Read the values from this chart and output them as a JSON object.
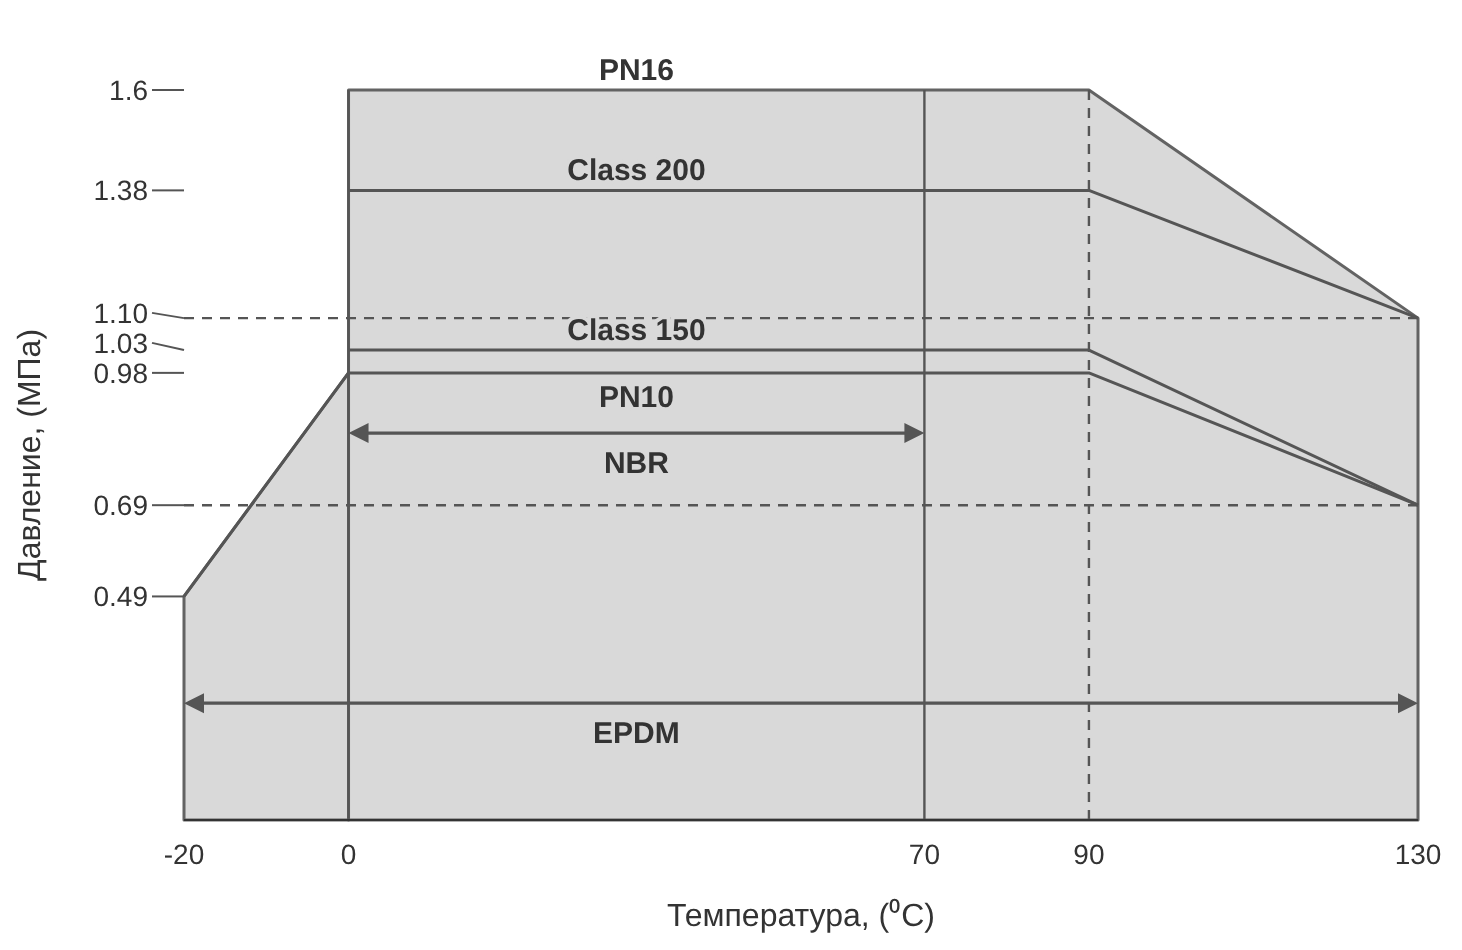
{
  "chart_data": {
    "type": "line",
    "xlabel": "Температура, (⁰C)",
    "ylabel": "Давление, (МПа)",
    "xlim": [
      -20,
      130
    ],
    "xticks": [
      -20,
      0,
      70,
      90,
      130
    ],
    "ylim": [
      0,
      1.6
    ],
    "yticks": [
      0.49,
      0.69,
      0.98,
      1.03,
      {
        "value": 1.1,
        "label": "1.10"
      },
      1.38,
      1.6
    ],
    "grid": false,
    "legend": false,
    "marker": "none",
    "line_style": "solid",
    "series": [
      {
        "type": "area",
        "color": "#d9d9d9",
        "x": [
          -20,
          0
        ],
        "values": [
          0.49,
          0.98
        ]
      },
      {
        "type": "area",
        "name": "PN16",
        "color": "#d9d9d9",
        "x": [
          0,
          90,
          130
        ],
        "values": [
          1.6,
          1.6,
          1.1
        ]
      },
      {
        "name": "Class 200",
        "color": "#555555",
        "x": [
          0,
          90,
          130
        ],
        "values": [
          1.38,
          1.38,
          1.1
        ]
      },
      {
        "name": "Class 150",
        "color": "#555555",
        "x": [
          0,
          90,
          130
        ],
        "values": [
          1.03,
          1.03,
          0.69
        ]
      },
      {
        "name": "PN10",
        "color": "#555555",
        "x": [
          -20,
          0,
          90,
          130
        ],
        "values": [
          0.49,
          0.98,
          0.98,
          0.69
        ]
      }
    ],
    "annotations": [
      "NBR",
      "EPDM"
    ],
    "ref_lines": [
      {
        "axis": "y",
        "value": 1.1,
        "line_style": "dashed",
        "color": "#555555"
      },
      {
        "axis": "y",
        "value": 0.69,
        "line_style": "dashed",
        "color": "#555555"
      },
      {
        "axis": "x",
        "value": 90,
        "line_style": "dashed",
        "color": "#555555"
      },
      {
        "axis": "x",
        "value": 70,
        "line_style": "solid",
        "color": "#555555"
      },
      {
        "axis": "x",
        "value": 0,
        "line_style": "solid",
        "color": "#555555"
      }
    ]
  }
}
